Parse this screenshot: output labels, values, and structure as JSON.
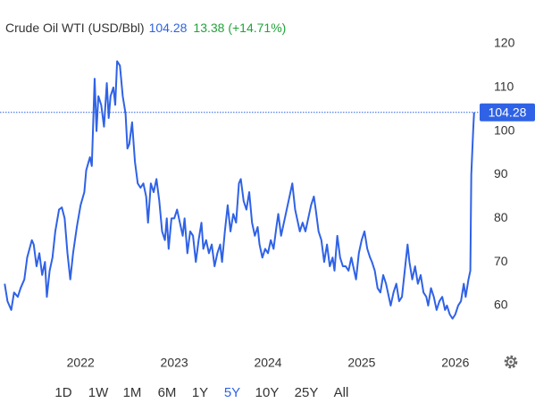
{
  "chart_data": {
    "type": "line",
    "title": "Crude Oil WTI (USD/Bbl)",
    "last_price": 104.28,
    "change": "13.38 (+14.71%)",
    "color": "#2f62e6",
    "price_color": "#2f62e6",
    "change_color": "#22a33a",
    "x": [
      2021.19,
      2021.22,
      2021.26,
      2021.29,
      2021.33,
      2021.36,
      2021.4,
      2021.43,
      2021.48,
      2021.5,
      2021.53,
      2021.56,
      2021.59,
      2021.62,
      2021.64,
      2021.67,
      2021.7,
      2021.73,
      2021.77,
      2021.8,
      2021.83,
      2021.86,
      2021.89,
      2021.92,
      2021.96,
      2022.0,
      2022.04,
      2022.06,
      2022.1,
      2022.12,
      2022.15,
      2022.17,
      2022.19,
      2022.22,
      2022.25,
      2022.28,
      2022.3,
      2022.32,
      2022.35,
      2022.37,
      2022.39,
      2022.42,
      2022.45,
      2022.48,
      2022.5,
      2022.52,
      2022.55,
      2022.58,
      2022.61,
      2022.64,
      2022.67,
      2022.7,
      2022.72,
      2022.75,
      2022.78,
      2022.81,
      2022.84,
      2022.87,
      2022.9,
      2022.92,
      2022.94,
      2022.97,
      2023.0,
      2023.03,
      2023.06,
      2023.09,
      2023.11,
      2023.14,
      2023.17,
      2023.2,
      2023.23,
      2023.26,
      2023.29,
      2023.31,
      2023.34,
      2023.37,
      2023.4,
      2023.43,
      2023.46,
      2023.49,
      2023.51,
      2023.54,
      2023.57,
      2023.6,
      2023.63,
      2023.66,
      2023.69,
      2023.71,
      2023.74,
      2023.77,
      2023.8,
      2023.83,
      2023.86,
      2023.89,
      2023.91,
      2023.94,
      2023.97,
      2024.0,
      2024.03,
      2024.06,
      2024.09,
      2024.11,
      2024.14,
      2024.17,
      2024.2,
      2024.23,
      2024.26,
      2024.29,
      2024.31,
      2024.34,
      2024.37,
      2024.4,
      2024.43,
      2024.46,
      2024.49,
      2024.51,
      2024.54,
      2024.57,
      2024.6,
      2024.63,
      2024.66,
      2024.69,
      2024.71,
      2024.74,
      2024.77,
      2024.8,
      2024.83,
      2024.86,
      2024.89,
      2024.91,
      2024.94,
      2024.97,
      2025.0,
      2025.03,
      2025.06,
      2025.09,
      2025.11,
      2025.14,
      2025.17,
      2025.2,
      2025.23,
      2025.26,
      2025.29,
      2025.31,
      2025.34,
      2025.37,
      2025.4,
      2025.43,
      2025.46,
      2025.49,
      2025.51,
      2025.54,
      2025.57,
      2025.6,
      2025.63,
      2025.66,
      2025.69,
      2025.71,
      2025.74,
      2025.77,
      2025.8,
      2025.83,
      2025.86,
      2025.89,
      2025.91,
      2025.94,
      2025.97,
      2026.0,
      2026.03,
      2026.06,
      2026.09,
      2026.11,
      2026.14,
      2026.16,
      2026.17,
      2026.19,
      2026.2
    ],
    "values": [
      65,
      61,
      59,
      63,
      62,
      64,
      66,
      71,
      75,
      74,
      69,
      72,
      67,
      70,
      62,
      68,
      71,
      77,
      82,
      82.5,
      80,
      72,
      66,
      72,
      78,
      83,
      86,
      91,
      94,
      92,
      112,
      100,
      108,
      106,
      101,
      111,
      103,
      108,
      110,
      106,
      116,
      115,
      108,
      104,
      96,
      97,
      102,
      93,
      88,
      87,
      88,
      85,
      79,
      88,
      86,
      89,
      84,
      77,
      75,
      80,
      73,
      80,
      80,
      82,
      79,
      76,
      80,
      72,
      77,
      76,
      70,
      75,
      79,
      73,
      75,
      72,
      74,
      69,
      72,
      74,
      70,
      77,
      83,
      77,
      81,
      79,
      88,
      89,
      84,
      82,
      86,
      79,
      76,
      78,
      74,
      71,
      73,
      72,
      75,
      73,
      78,
      81,
      76,
      79,
      82,
      85,
      88,
      82,
      80,
      77,
      79,
      77,
      80,
      83,
      85,
      82,
      77,
      75,
      70,
      74,
      69,
      71,
      68,
      76,
      71,
      69,
      69,
      68,
      71,
      69,
      66,
      72,
      75,
      77,
      73,
      71,
      70,
      68,
      64,
      63,
      67,
      65,
      62,
      60,
      63,
      65,
      61,
      62,
      68,
      74,
      70,
      66,
      69,
      65,
      67,
      63,
      62,
      60,
      64,
      62,
      59,
      61,
      62,
      59,
      60,
      58,
      57,
      58,
      60,
      61,
      65,
      62,
      66,
      68,
      90,
      100,
      104.28
    ],
    "xlim": [
      2021.14,
      2026.24
    ],
    "xticks": [
      2022,
      2023,
      2024,
      2025,
      2026
    ],
    "ylim": [
      50,
      125
    ],
    "yticks": [
      60,
      70,
      80,
      90,
      100,
      110,
      120
    ],
    "grid": false,
    "ranges": [
      "1D",
      "1W",
      "1M",
      "6M",
      "1Y",
      "5Y",
      "10Y",
      "25Y",
      "All"
    ],
    "selected_range": "5Y"
  }
}
